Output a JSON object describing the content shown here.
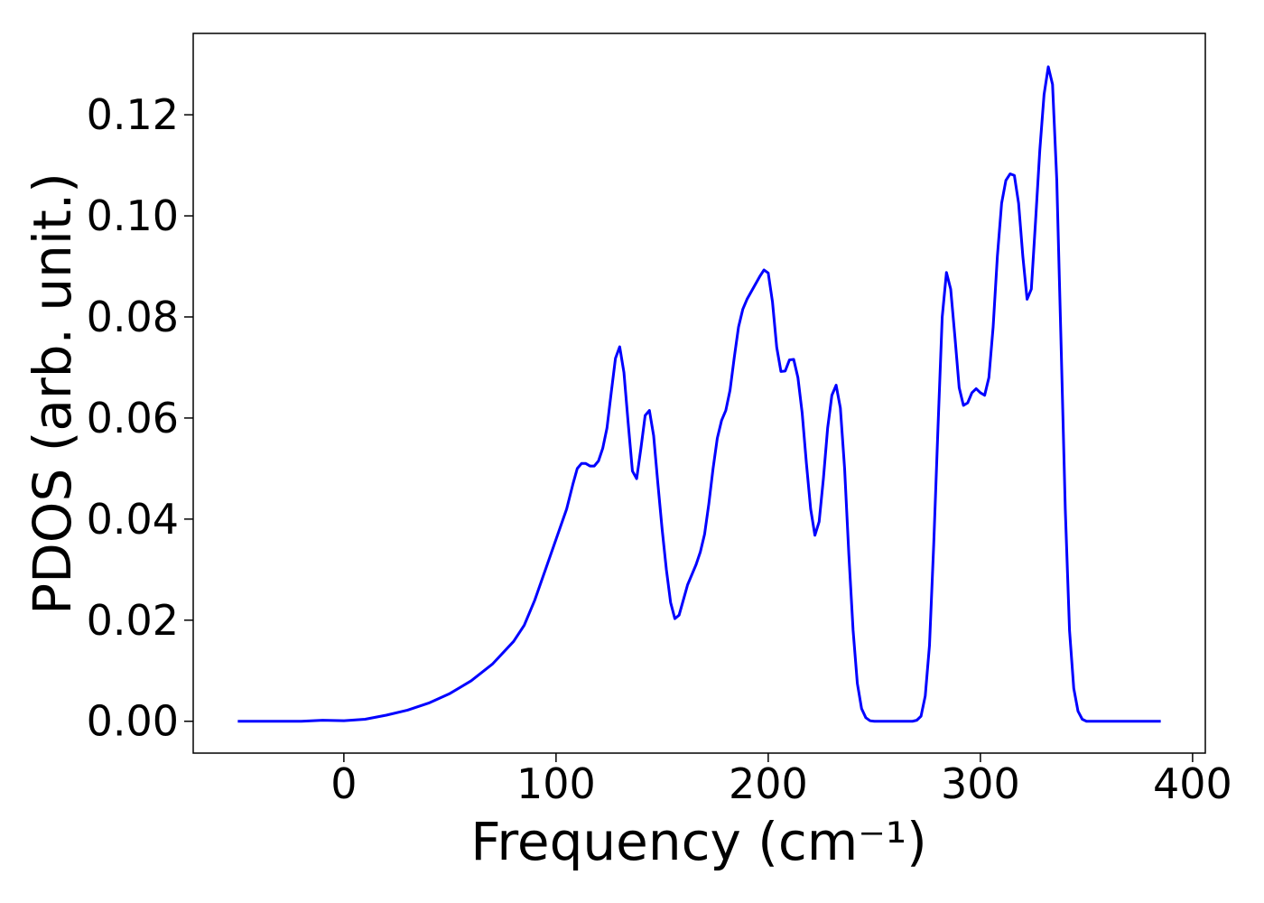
{
  "chart_data": {
    "type": "line",
    "xlabel": "Frequency (cm⁻¹)",
    "ylabel": "PDOS (arb. unit.)",
    "xlim": [
      -71,
      406
    ],
    "ylim": [
      -0.0063,
      0.1361
    ],
    "xticks": [
      0,
      100,
      200,
      300,
      400
    ],
    "yticks": [
      {
        "value": 0,
        "label": "0.00"
      },
      {
        "value": 0.02,
        "label": "0.02"
      },
      {
        "value": 0.04,
        "label": "0.04"
      },
      {
        "value": 0.06,
        "label": "0.06"
      },
      {
        "value": 0.08,
        "label": "0.08"
      },
      {
        "value": 0.1,
        "label": "0.10"
      },
      {
        "value": 0.12,
        "label": "0.12"
      }
    ],
    "grid": false,
    "series": [
      {
        "color": "#0000ff",
        "x": [
          -50,
          -20,
          -10,
          0,
          10,
          20,
          30,
          40,
          50,
          60,
          70,
          80,
          85,
          90,
          95,
          100,
          105,
          108,
          110,
          112,
          114,
          116,
          118,
          120,
          122,
          124,
          126,
          128,
          130,
          132,
          134,
          136,
          138,
          140,
          142,
          144,
          146,
          148,
          150,
          152,
          154,
          156,
          158,
          160,
          162,
          164,
          166,
          168,
          170,
          172,
          174,
          176,
          178,
          180,
          182,
          184,
          186,
          188,
          190,
          192,
          194,
          196,
          198,
          200,
          202,
          204,
          206,
          208,
          210,
          212,
          214,
          216,
          218,
          220,
          222,
          224,
          226,
          228,
          230,
          232,
          234,
          236,
          238,
          240,
          242,
          244,
          246,
          248,
          250,
          252,
          254,
          256,
          268,
          270,
          272,
          274,
          276,
          278,
          280,
          282,
          284,
          286,
          288,
          290,
          292,
          294,
          296,
          298,
          300,
          302,
          304,
          306,
          308,
          310,
          312,
          314,
          316,
          318,
          320,
          322,
          324,
          326,
          328,
          330,
          332,
          334,
          336,
          338,
          340,
          342,
          344,
          346,
          348,
          350,
          352,
          354,
          356,
          385
        ],
        "values": [
          0,
          0,
          0.0002,
          0.0001,
          0.0004,
          0.0012,
          0.0022,
          0.0036,
          0.0055,
          0.008,
          0.0113,
          0.0158,
          0.019,
          0.024,
          0.03,
          0.036,
          0.042,
          0.047,
          0.05,
          0.051,
          0.051,
          0.0505,
          0.0505,
          0.0515,
          0.054,
          0.058,
          0.065,
          0.0718,
          0.0741,
          0.069,
          0.059,
          0.0495,
          0.048,
          0.054,
          0.0605,
          0.0615,
          0.0565,
          0.047,
          0.038,
          0.03,
          0.0235,
          0.0203,
          0.021,
          0.024,
          0.027,
          0.029,
          0.031,
          0.0335,
          0.037,
          0.043,
          0.05,
          0.056,
          0.0595,
          0.0615,
          0.0655,
          0.072,
          0.078,
          0.0815,
          0.0835,
          0.085,
          0.0865,
          0.088,
          0.0893,
          0.0887,
          0.083,
          0.074,
          0.0692,
          0.0693,
          0.0715,
          0.0716,
          0.068,
          0.061,
          0.051,
          0.042,
          0.0368,
          0.0395,
          0.048,
          0.058,
          0.0645,
          0.0665,
          0.062,
          0.05,
          0.033,
          0.018,
          0.0075,
          0.0025,
          0.0007,
          0.0001,
          0,
          0,
          0,
          0,
          0,
          0.0002,
          0.001,
          0.005,
          0.015,
          0.035,
          0.058,
          0.08,
          0.0888,
          0.0855,
          0.076,
          0.066,
          0.0625,
          0.063,
          0.065,
          0.0658,
          0.065,
          0.0645,
          0.068,
          0.078,
          0.092,
          0.1025,
          0.107,
          0.1083,
          0.108,
          0.1025,
          0.092,
          0.0835,
          0.0855,
          0.099,
          0.113,
          0.124,
          0.1295,
          0.126,
          0.107,
          0.075,
          0.042,
          0.018,
          0.0065,
          0.002,
          0.0004,
          0,
          0,
          0,
          0,
          0
        ]
      }
    ]
  }
}
